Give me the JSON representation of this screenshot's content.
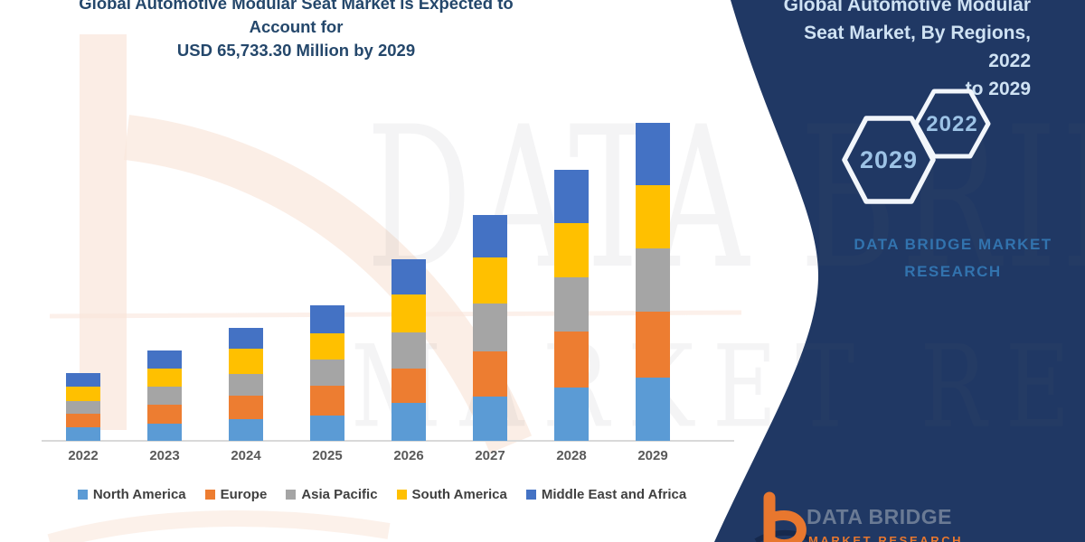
{
  "header": {
    "title_line1": "Global Automotive Modular Seat Market is Expected to Account for",
    "title_line2": "USD 65,733.30 Million by 2029"
  },
  "chart_data": {
    "type": "bar",
    "stacked": true,
    "title": "Global Automotive Modular Seat Market is Expected to Account for USD 65,733.30 Million by 2029",
    "stated_value_2029": "USD 65,733.30 Million",
    "categories": [
      "2022",
      "2023",
      "2024",
      "2025",
      "2026",
      "2027",
      "2028",
      "2029"
    ],
    "series": [
      {
        "name": "North America",
        "color": "#5B9BD5",
        "values": [
          15,
          19,
          24,
          28,
          42,
          49,
          59,
          70
        ]
      },
      {
        "name": "Europe",
        "color": "#ED7D31",
        "values": [
          15,
          21,
          26,
          33,
          38,
          50,
          62,
          73
        ]
      },
      {
        "name": "Asia Pacific",
        "color": "#A5A5A5",
        "values": [
          14,
          20,
          24,
          29,
          40,
          53,
          60,
          70
        ]
      },
      {
        "name": "South America",
        "color": "#FFC000",
        "values": [
          16,
          20,
          28,
          29,
          42,
          51,
          60,
          70
        ]
      },
      {
        "name": "Middle East and Africa",
        "color": "#4472C4",
        "values": [
          15,
          20,
          23,
          31,
          39,
          47,
          59,
          69
        ]
      }
    ],
    "unit": "relative stacked height (no y-axis shown in figure)",
    "xlabel": "",
    "ylabel": "",
    "grid": false,
    "legend_position": "bottom"
  },
  "panel": {
    "title_line1": "Global Automotive Modular",
    "title_line2": "Seat Market, By Regions, 2022",
    "title_line3": "to 2029",
    "hexagons": [
      {
        "label": "2029"
      },
      {
        "label": "2022"
      }
    ],
    "brand_line1": "DATA BRIDGE MARKET",
    "brand_line2": "RESEARCH"
  },
  "footer_logo": {
    "name_text": "DATA BRIDGE",
    "sub_text": "MARKET RESEARCH"
  },
  "watermarks": {
    "big_text": "DATA BRIDGE",
    "sub_text": "MARKET RESEARCH"
  },
  "colors": {
    "panel_navy": "#203864",
    "main_title": "#24476B",
    "panel_title": "#CFE2F3",
    "hexagon_label": "#9DC3E6",
    "brand_text": "#3273AE",
    "footer_name": "#6A7A94",
    "footer_sub_orange": "#E8772E",
    "axis_line": "#D9D9D9",
    "legend_text": "#404040",
    "xaxis_label": "#595959",
    "watermark_peach": "#FAE7DC"
  }
}
